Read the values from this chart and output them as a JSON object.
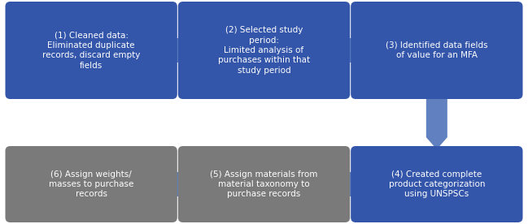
{
  "boxes": [
    {
      "id": 1,
      "text": "(1) Cleaned data:\nEliminated duplicate\nrecords, discard empty\nfields",
      "color": "#3355AA",
      "row": 0,
      "col": 0
    },
    {
      "id": 2,
      "text": "(2) Selected study\nperiod:\nLimited analysis of\npurchases within that\nstudy period",
      "color": "#3355AA",
      "row": 0,
      "col": 1
    },
    {
      "id": 3,
      "text": "(3) Identified data fields\nof value for an MFA",
      "color": "#3355AA",
      "row": 0,
      "col": 2
    },
    {
      "id": 4,
      "text": "(4) Created complete\nproduct categorization\nusing UNSPSCs",
      "color": "#3355AA",
      "row": 1,
      "col": 2
    },
    {
      "id": 5,
      "text": "(5) Assign materials from\nmaterial taxonomy to\npurchase records",
      "color": "#7A7A7A",
      "row": 1,
      "col": 1
    },
    {
      "id": 6,
      "text": "(6) Assign weights/\nmasses to purchase\nrecords",
      "color": "#7A7A7A",
      "row": 1,
      "col": 0
    }
  ],
  "arrow_color": "#6080C0",
  "background_color": "#FFFFFF",
  "text_color": "#FFFFFF",
  "fontsize": 7.5
}
